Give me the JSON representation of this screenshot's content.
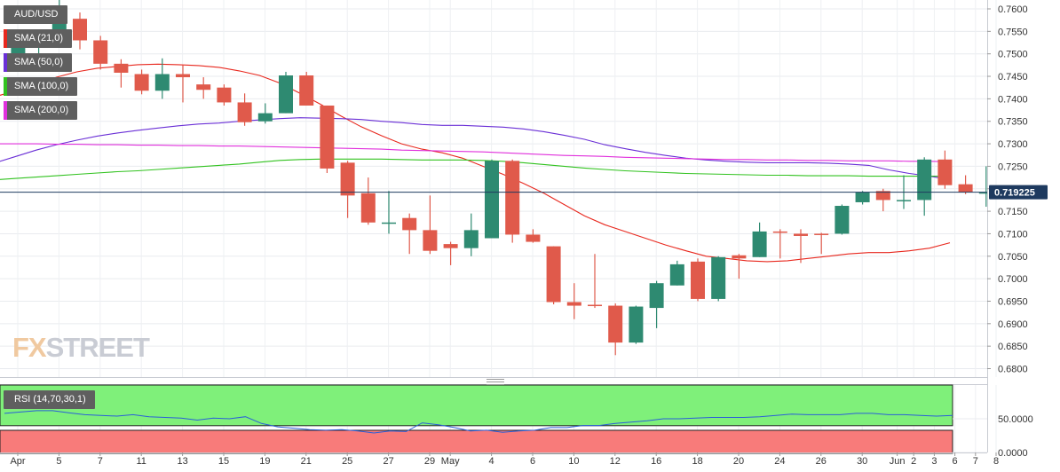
{
  "chart_data": {
    "type": "candlestick",
    "symbol": "AUD/USD",
    "current_price_label": "0.719225",
    "current_price": 0.719225,
    "ylim": [
      0.6775,
      0.7615
    ],
    "y_ticks": [
      "0.7600",
      "0.7550",
      "0.7500",
      "0.7450",
      "0.7400",
      "0.7350",
      "0.7300",
      "0.7250",
      "0.7200",
      "0.7150",
      "0.7100",
      "0.7050",
      "0.7000",
      "0.6950",
      "0.6900",
      "0.6850",
      "0.6800"
    ],
    "x_ticks": [
      {
        "i": 0,
        "label": "Apr"
      },
      {
        "i": 2,
        "label": "5"
      },
      {
        "i": 4,
        "label": "7"
      },
      {
        "i": 6,
        "label": "11"
      },
      {
        "i": 8,
        "label": "13"
      },
      {
        "i": 10,
        "label": "15"
      },
      {
        "i": 12,
        "label": "19"
      },
      {
        "i": 14,
        "label": "21"
      },
      {
        "i": 16,
        "label": "25"
      },
      {
        "i": 18,
        "label": "27"
      },
      {
        "i": 20,
        "label": "29"
      },
      {
        "i": 21,
        "label": "May"
      },
      {
        "i": 23,
        "label": "4"
      },
      {
        "i": 25,
        "label": "6"
      },
      {
        "i": 27,
        "label": "10"
      },
      {
        "i": 29,
        "label": "12"
      },
      {
        "i": 31,
        "label": "16"
      },
      {
        "i": 33,
        "label": "18"
      },
      {
        "i": 35,
        "label": "20"
      },
      {
        "i": 37,
        "label": "24"
      },
      {
        "i": 39,
        "label": "26"
      },
      {
        "i": 41,
        "label": "30"
      },
      {
        "i": 42.7,
        "label": "Jun"
      },
      {
        "i": 43.5,
        "label": "2"
      },
      {
        "i": 44.5,
        "label": "3"
      },
      {
        "i": 45.5,
        "label": "6"
      },
      {
        "i": 46.5,
        "label": "7"
      },
      {
        "i": 47.5,
        "label": "8"
      }
    ],
    "candles": [
      {
        "o": 0.75,
        "h": 0.7525,
        "l": 0.747,
        "c": 0.7515
      },
      {
        "o": 0.7515,
        "h": 0.7545,
        "l": 0.749,
        "c": 0.7535
      },
      {
        "o": 0.7535,
        "h": 0.762,
        "l": 0.752,
        "c": 0.7575
      },
      {
        "o": 0.7578,
        "h": 0.7592,
        "l": 0.751,
        "c": 0.753
      },
      {
        "o": 0.753,
        "h": 0.754,
        "l": 0.7465,
        "c": 0.7478
      },
      {
        "o": 0.7478,
        "h": 0.7488,
        "l": 0.7425,
        "c": 0.7458
      },
      {
        "o": 0.7455,
        "h": 0.7465,
        "l": 0.741,
        "c": 0.7418
      },
      {
        "o": 0.7418,
        "h": 0.749,
        "l": 0.74,
        "c": 0.7455
      },
      {
        "o": 0.7455,
        "h": 0.7475,
        "l": 0.7392,
        "c": 0.7448
      },
      {
        "o": 0.7432,
        "h": 0.7448,
        "l": 0.74,
        "c": 0.742
      },
      {
        "o": 0.7425,
        "h": 0.7432,
        "l": 0.7385,
        "c": 0.7392
      },
      {
        "o": 0.7392,
        "h": 0.7412,
        "l": 0.734,
        "c": 0.7348
      },
      {
        "o": 0.735,
        "h": 0.739,
        "l": 0.7345,
        "c": 0.7368
      },
      {
        "o": 0.7368,
        "h": 0.746,
        "l": 0.7368,
        "c": 0.7452
      },
      {
        "o": 0.7452,
        "h": 0.746,
        "l": 0.7385,
        "c": 0.7385
      },
      {
        "o": 0.7385,
        "h": 0.7385,
        "l": 0.7235,
        "c": 0.7245
      },
      {
        "o": 0.7258,
        "h": 0.7262,
        "l": 0.7135,
        "c": 0.7185
      },
      {
        "o": 0.719,
        "h": 0.7225,
        "l": 0.712,
        "c": 0.7125
      },
      {
        "o": 0.7125,
        "h": 0.7195,
        "l": 0.71,
        "c": 0.7125
      },
      {
        "o": 0.7135,
        "h": 0.7145,
        "l": 0.7055,
        "c": 0.7108
      },
      {
        "o": 0.7108,
        "h": 0.7185,
        "l": 0.7055,
        "c": 0.7062
      },
      {
        "o": 0.7077,
        "h": 0.7082,
        "l": 0.703,
        "c": 0.7068
      },
      {
        "o": 0.7068,
        "h": 0.7145,
        "l": 0.705,
        "c": 0.7108
      },
      {
        "o": 0.709,
        "h": 0.7265,
        "l": 0.709,
        "c": 0.7262
      },
      {
        "o": 0.7262,
        "h": 0.7265,
        "l": 0.708,
        "c": 0.7098
      },
      {
        "o": 0.7098,
        "h": 0.711,
        "l": 0.708,
        "c": 0.7082
      },
      {
        "o": 0.7072,
        "h": 0.7072,
        "l": 0.6943,
        "c": 0.6948
      },
      {
        "o": 0.6948,
        "h": 0.699,
        "l": 0.691,
        "c": 0.694
      },
      {
        "o": 0.6942,
        "h": 0.7055,
        "l": 0.6935,
        "c": 0.694
      },
      {
        "o": 0.694,
        "h": 0.6945,
        "l": 0.683,
        "c": 0.6858
      },
      {
        "o": 0.6858,
        "h": 0.694,
        "l": 0.6855,
        "c": 0.6938
      },
      {
        "o": 0.6935,
        "h": 0.6995,
        "l": 0.689,
        "c": 0.699
      },
      {
        "o": 0.6985,
        "h": 0.704,
        "l": 0.6985,
        "c": 0.7032
      },
      {
        "o": 0.7038,
        "h": 0.7045,
        "l": 0.695,
        "c": 0.6955
      },
      {
        "o": 0.6955,
        "h": 0.705,
        "l": 0.695,
        "c": 0.7048
      },
      {
        "o": 0.7052,
        "h": 0.7055,
        "l": 0.7,
        "c": 0.7045
      },
      {
        "o": 0.7048,
        "h": 0.7125,
        "l": 0.7048,
        "c": 0.7105
      },
      {
        "o": 0.7105,
        "h": 0.711,
        "l": 0.7045,
        "c": 0.7102
      },
      {
        "o": 0.71,
        "h": 0.711,
        "l": 0.7035,
        "c": 0.7095
      },
      {
        "o": 0.71,
        "h": 0.7102,
        "l": 0.7055,
        "c": 0.7098
      },
      {
        "o": 0.71,
        "h": 0.7165,
        "l": 0.7098,
        "c": 0.7162
      },
      {
        "o": 0.717,
        "h": 0.7195,
        "l": 0.7165,
        "c": 0.7192
      },
      {
        "o": 0.7195,
        "h": 0.72,
        "l": 0.715,
        "c": 0.7175
      },
      {
        "o": 0.7175,
        "h": 0.723,
        "l": 0.7155,
        "c": 0.7175
      },
      {
        "o": 0.7175,
        "h": 0.727,
        "l": 0.714,
        "c": 0.7265
      },
      {
        "o": 0.7265,
        "h": 0.7285,
        "l": 0.72,
        "c": 0.7208
      },
      {
        "o": 0.721,
        "h": 0.723,
        "l": 0.7188,
        "c": 0.7192
      },
      {
        "o": 0.719,
        "h": 0.725,
        "l": 0.716,
        "c": 0.7192
      }
    ],
    "series": [
      {
        "name": "SMA (21,0)",
        "color": "#e8281e",
        "values": [
          0.7405,
          0.7418,
          0.7432,
          0.7448,
          0.746,
          0.7468,
          0.7472,
          0.7476,
          0.7477,
          0.7476,
          0.7474,
          0.747,
          0.7462,
          0.7452,
          0.7435,
          0.7412,
          0.7388,
          0.7362,
          0.7338,
          0.7318,
          0.73,
          0.7288,
          0.728,
          0.7268,
          0.725,
          0.7232,
          0.7212,
          0.719,
          0.7165,
          0.714,
          0.712,
          0.7105,
          0.709,
          0.7075,
          0.7062,
          0.705,
          0.7045,
          0.704,
          0.7038,
          0.704,
          0.7045,
          0.705,
          0.7055,
          0.7058,
          0.7058,
          0.7062,
          0.7068,
          0.708
        ]
      },
      {
        "name": "SMA (50,0)",
        "color": "#6a2fd6",
        "values": [
          0.7258,
          0.7272,
          0.7286,
          0.7298,
          0.7308,
          0.7317,
          0.7324,
          0.733,
          0.7335,
          0.734,
          0.7344,
          0.7346,
          0.735,
          0.7353,
          0.7356,
          0.7358,
          0.7357,
          0.7356,
          0.7354,
          0.735,
          0.7347,
          0.7343,
          0.7341,
          0.7341,
          0.7339,
          0.7337,
          0.7333,
          0.7327,
          0.7319,
          0.731,
          0.7298,
          0.7289,
          0.7281,
          0.7274,
          0.7268,
          0.7264,
          0.7261,
          0.7259,
          0.7258,
          0.7258,
          0.7258,
          0.7257,
          0.7255,
          0.7252,
          0.7242,
          0.7234,
          0.7228,
          0.722
        ]
      },
      {
        "name": "SMA (100,0)",
        "color": "#31c21f",
        "values": [
          0.722,
          0.7223,
          0.7226,
          0.7229,
          0.7232,
          0.7235,
          0.7238,
          0.724,
          0.7243,
          0.7246,
          0.7249,
          0.7252,
          0.7255,
          0.7259,
          0.7263,
          0.7265,
          0.7266,
          0.7266,
          0.7266,
          0.7266,
          0.7265,
          0.7264,
          0.7264,
          0.7264,
          0.7263,
          0.7261,
          0.7258,
          0.7254,
          0.725,
          0.7246,
          0.7243,
          0.724,
          0.7238,
          0.7236,
          0.7234,
          0.7233,
          0.7232,
          0.7231,
          0.723,
          0.723,
          0.7229,
          0.7229,
          0.7229,
          0.7228,
          0.7228,
          0.7228,
          0.7228,
          0.7228
        ]
      },
      {
        "name": "SMA (200,0)",
        "color": "#e030dc",
        "values": [
          0.73,
          0.73,
          0.73,
          0.7299,
          0.7299,
          0.7298,
          0.7298,
          0.7297,
          0.7297,
          0.7296,
          0.7296,
          0.7295,
          0.7295,
          0.7294,
          0.7293,
          0.7292,
          0.7291,
          0.729,
          0.7289,
          0.7288,
          0.7286,
          0.7285,
          0.7284,
          0.7283,
          0.7282,
          0.728,
          0.7278,
          0.7276,
          0.7274,
          0.7273,
          0.7272,
          0.727,
          0.7269,
          0.7268,
          0.7267,
          0.7266,
          0.7265,
          0.7265,
          0.7264,
          0.7264,
          0.7263,
          0.7263,
          0.7262,
          0.7262,
          0.7262,
          0.7261,
          0.7261,
          0.726
        ]
      }
    ],
    "rsi": {
      "label": "RSI (14,70,30,1)",
      "ylim": [
        0,
        100
      ],
      "y_ticks": [
        "50.0000",
        "0.0000"
      ],
      "levels": [
        70,
        30
      ],
      "values": [
        58,
        60,
        62,
        62,
        59,
        56,
        55,
        54,
        56,
        53,
        52,
        51,
        48,
        51,
        50,
        53,
        43,
        38,
        36,
        34,
        33,
        34,
        32,
        29,
        32,
        31,
        44,
        41,
        37,
        32,
        33,
        30,
        32,
        33,
        37,
        37,
        40,
        40,
        43,
        45,
        47,
        50,
        50,
        51,
        52,
        52,
        52,
        53,
        55,
        57,
        56,
        56,
        56,
        58,
        58,
        56,
        56,
        55,
        54,
        55
      ]
    },
    "colors": {
      "bull": "#2e8a71",
      "bear": "#e05a4b",
      "rsi_line": "#2a5fd8",
      "ob_zone": "#7ff07a",
      "os_zone": "#f87b7a",
      "price_line": "#1e3a5f"
    }
  },
  "legend": {
    "symbol": "AUD/USD",
    "sma21": "SMA (21,0)",
    "sma50": "SMA (50,0)",
    "sma100": "SMA (100,0)",
    "sma200": "SMA (200,0)"
  },
  "logo": {
    "fx": "FX",
    "street": "STREET"
  }
}
